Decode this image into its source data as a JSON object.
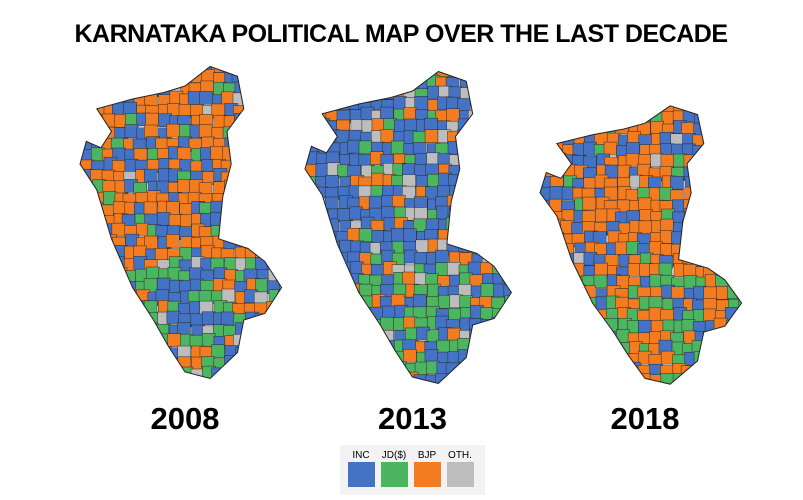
{
  "title": "KARNATAKA POLITICAL MAP OVER THE LAST DECADE",
  "maps": [
    {
      "year": "2008"
    },
    {
      "year": "2013"
    },
    {
      "year": "2018"
    }
  ],
  "legend": [
    {
      "label": "INC",
      "color": "#4472c4"
    },
    {
      "label": "JD($)",
      "color": "#4cb560"
    },
    {
      "label": "BJP",
      "color": "#f47c20"
    },
    {
      "label": "OTH.",
      "color": "#bdbdbd"
    }
  ]
}
